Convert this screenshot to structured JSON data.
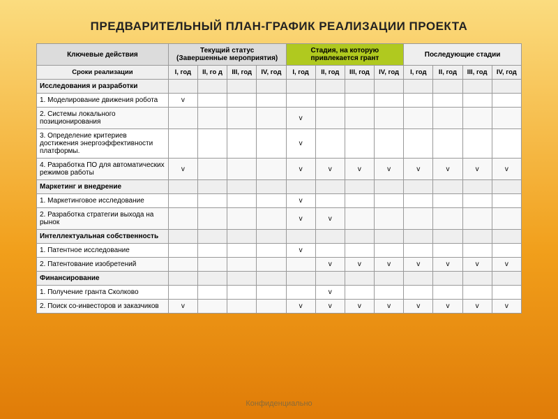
{
  "title": "ПРЕДВАРИТЕЛЬНЫЙ ПЛАН-ГРАФИК РЕАЛИЗАЦИИ ПРОЕКТА",
  "footer": "Конфиденциально",
  "colors": {
    "bg_gradient_top": "#fbdc7f",
    "bg_gradient_mid": "#f19f1b",
    "bg_gradient_bot": "#e07c08",
    "hdr_gray": "#dcdcdc",
    "hdr_green": "#b0c91f",
    "hdr_gray2": "#eeeeee",
    "section_bg": "#efefef",
    "border": "#999999"
  },
  "header": {
    "key_actions": "Ключевые действия",
    "group1": "Текущий статус\n(Завершенные мероприятия)",
    "group2": "Стадия, на которую привлекается грант",
    "group3": "Последующие стадии",
    "timeline_label": "Сроки реализации",
    "years": [
      "I, год",
      "II, го д",
      "III, год",
      "IV, год",
      "I, год",
      "II, год",
      "III, год",
      "IV, год",
      "I, год",
      "II, год",
      "III, год",
      "IV, год"
    ]
  },
  "mark_symbol": "v",
  "rows": [
    {
      "type": "section",
      "label": "Исследования и разработки"
    },
    {
      "type": "item",
      "label": "1. Моделирование движения робота",
      "cells": [
        "v",
        "",
        "",
        "",
        "",
        "",
        "",
        "",
        "",
        "",
        "",
        ""
      ]
    },
    {
      "type": "item",
      "label": "2. Системы локального позиционирования",
      "cells": [
        "",
        "",
        "",
        "",
        "v",
        "",
        "",
        "",
        "",
        "",
        "",
        ""
      ]
    },
    {
      "type": "item",
      "label": "3. Определение критериев достижения энергоэффективности платформы.",
      "cells": [
        "",
        "",
        "",
        "",
        "v",
        "",
        "",
        "",
        "",
        "",
        "",
        ""
      ]
    },
    {
      "type": "item",
      "label": "4. Разработка ПО для автоматических режимов работы",
      "cells": [
        "v",
        "",
        "",
        "",
        "v",
        "v",
        "v",
        "v",
        "v",
        "v",
        "v",
        "v"
      ]
    },
    {
      "type": "section",
      "label": "Маркетинг и внедрение"
    },
    {
      "type": "item",
      "label": "1. Маркетинговое исследование",
      "cells": [
        "",
        "",
        "",
        "",
        "v",
        "",
        "",
        "",
        "",
        "",
        "",
        ""
      ]
    },
    {
      "type": "item",
      "label": "2. Разработка стратегии выхода на рынок",
      "cells": [
        "",
        "",
        "",
        "",
        "v",
        "v",
        "",
        "",
        "",
        "",
        "",
        ""
      ]
    },
    {
      "type": "section",
      "label": "Интеллектуальная собственность"
    },
    {
      "type": "item",
      "label": "1. Патентное исследование",
      "cells": [
        "",
        "",
        "",
        "",
        "v",
        "",
        "",
        "",
        "",
        "",
        "",
        ""
      ]
    },
    {
      "type": "item",
      "label": "2. Патентование изобретений",
      "cells": [
        "",
        "",
        "",
        "",
        "",
        "v",
        "v",
        "v",
        "v",
        "v",
        "v",
        "v"
      ]
    },
    {
      "type": "section",
      "label": "Финансирование"
    },
    {
      "type": "item",
      "label": "1. Получение гранта Сколково",
      "cells": [
        "",
        "",
        "",
        "",
        "",
        "v",
        "",
        "",
        "",
        "",
        "",
        ""
      ]
    },
    {
      "type": "item",
      "label": "2. Поиск со-инвесторов и заказчиков",
      "cells": [
        "v",
        "",
        "",
        "",
        "v",
        "v",
        "v",
        "v",
        "v",
        "v",
        "v",
        "v"
      ]
    }
  ]
}
